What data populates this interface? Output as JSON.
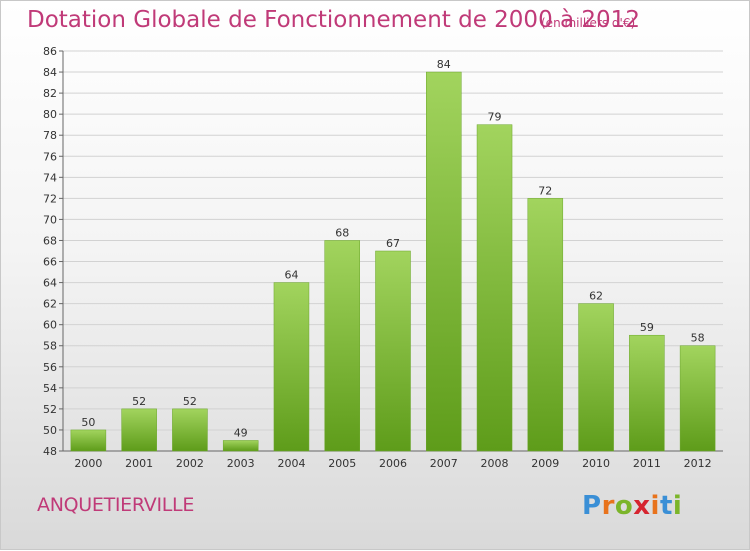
{
  "header": {
    "title": "Dotation Globale de Fonctionnement de 2000 à 2012",
    "unit_note": "(en milliers d'€)"
  },
  "footer": {
    "commune": "ANQUETIERVILLE",
    "logo": {
      "letters": [
        "P",
        "r",
        "o",
        "x",
        "i",
        "t",
        "i"
      ],
      "colors": [
        "#3a8fd6",
        "#e8731c",
        "#7bb52a",
        "#d6242f",
        "#e8731c",
        "#3a8fd6",
        "#7bb52a"
      ]
    }
  },
  "colors": {
    "title": "#c03a78",
    "bar_top": "#a2d45e",
    "bar_bottom": "#5e9c1a",
    "gridline": "#d2d2d2"
  },
  "chart_data": {
    "type": "bar",
    "categories": [
      "2000",
      "2001",
      "2002",
      "2003",
      "2004",
      "2005",
      "2006",
      "2007",
      "2008",
      "2009",
      "2010",
      "2011",
      "2012"
    ],
    "values": [
      50,
      52,
      52,
      49,
      64,
      68,
      67,
      84,
      79,
      72,
      62,
      59,
      58
    ],
    "title": "Dotation Globale de Fonctionnement de 2000 à 2012",
    "ylim": [
      48,
      86
    ],
    "yticks": [
      48,
      50,
      52,
      54,
      56,
      58,
      60,
      62,
      64,
      66,
      68,
      70,
      72,
      74,
      76,
      78,
      80,
      82,
      84,
      86
    ],
    "grid": true,
    "data_labels": true
  }
}
